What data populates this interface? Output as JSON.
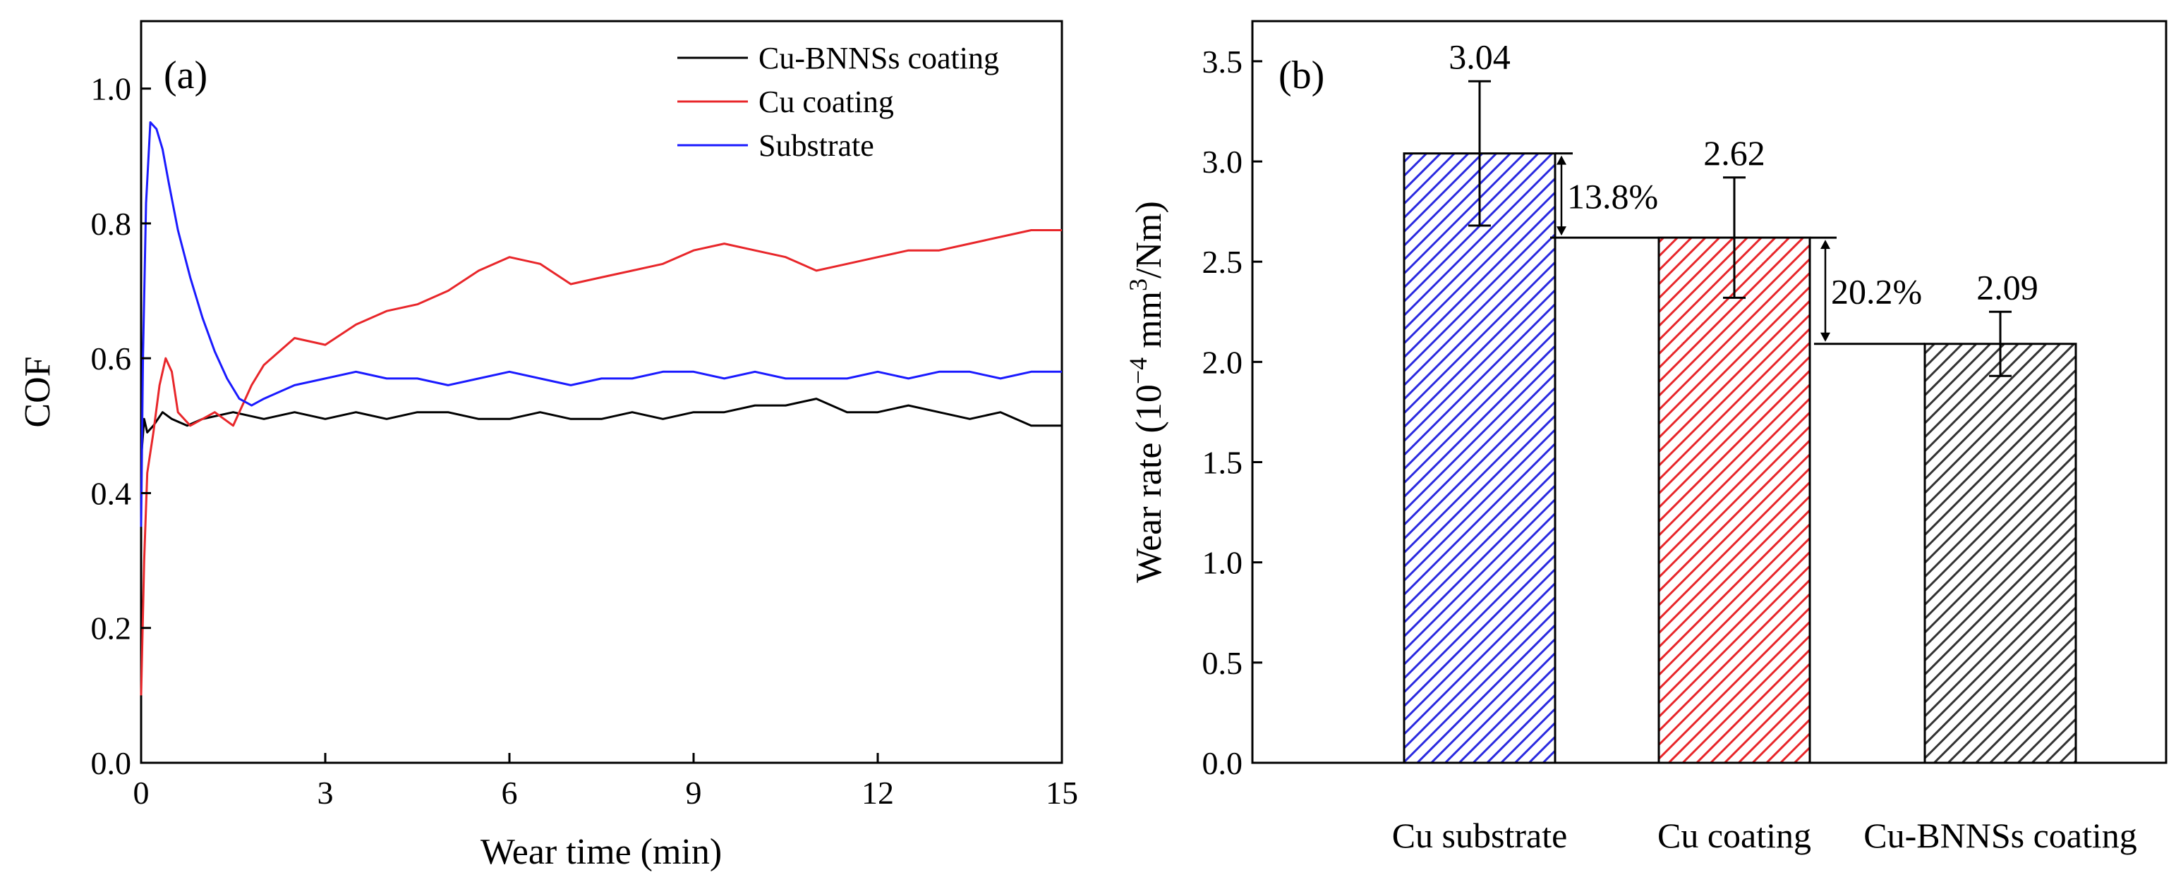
{
  "chart_data": [
    {
      "panel_label": "(a)",
      "type": "line",
      "title": "",
      "xlabel": "Wear time (min)",
      "ylabel": "COF",
      "xlim": [
        0,
        15
      ],
      "ylim": [
        0,
        1.1
      ],
      "xticks": [
        0,
        3,
        6,
        9,
        12,
        15
      ],
      "yticks": [
        0.0,
        0.2,
        0.4,
        0.6,
        0.8,
        1.0
      ],
      "xtick_labels": [
        "0",
        "3",
        "6",
        "9",
        "12",
        "15"
      ],
      "ytick_labels": [
        "0.0",
        "0.2",
        "0.4",
        "0.6",
        "0.8",
        "1.0"
      ],
      "legend_position": "top-right",
      "series": [
        {
          "name": "Cu-BNNSs coating",
          "color": "#000000",
          "x": [
            0,
            0.05,
            0.1,
            0.2,
            0.35,
            0.5,
            0.75,
            1.0,
            1.5,
            2.0,
            2.5,
            3.0,
            3.5,
            4.0,
            4.5,
            5.0,
            5.5,
            6.0,
            6.5,
            7.0,
            7.5,
            8.0,
            8.5,
            9.0,
            9.5,
            10.0,
            10.5,
            11.0,
            11.5,
            12.0,
            12.5,
            13.0,
            13.5,
            14.0,
            14.5,
            15.0
          ],
          "y": [
            0.45,
            0.51,
            0.49,
            0.5,
            0.52,
            0.51,
            0.5,
            0.51,
            0.52,
            0.51,
            0.52,
            0.51,
            0.52,
            0.51,
            0.52,
            0.52,
            0.51,
            0.51,
            0.52,
            0.51,
            0.51,
            0.52,
            0.51,
            0.52,
            0.52,
            0.53,
            0.53,
            0.54,
            0.52,
            0.52,
            0.53,
            0.52,
            0.51,
            0.52,
            0.5,
            0.5
          ]
        },
        {
          "name": "Cu coating",
          "color": "#e8262a",
          "x": [
            0,
            0.05,
            0.1,
            0.2,
            0.3,
            0.4,
            0.5,
            0.6,
            0.8,
            1.0,
            1.2,
            1.5,
            1.8,
            2.0,
            2.5,
            3.0,
            3.5,
            4.0,
            4.5,
            5.0,
            5.5,
            6.0,
            6.5,
            7.0,
            7.5,
            8.0,
            8.5,
            9.0,
            9.5,
            10.0,
            10.5,
            11.0,
            11.5,
            12.0,
            12.5,
            13.0,
            13.5,
            14.0,
            14.5,
            15.0
          ],
          "y": [
            0.1,
            0.3,
            0.43,
            0.49,
            0.56,
            0.6,
            0.58,
            0.52,
            0.5,
            0.51,
            0.52,
            0.5,
            0.56,
            0.59,
            0.63,
            0.62,
            0.65,
            0.67,
            0.68,
            0.7,
            0.73,
            0.75,
            0.74,
            0.71,
            0.72,
            0.73,
            0.74,
            0.76,
            0.77,
            0.76,
            0.75,
            0.73,
            0.74,
            0.75,
            0.76,
            0.76,
            0.77,
            0.78,
            0.79,
            0.79
          ]
        },
        {
          "name": "Substrate",
          "color": "#1a1aff",
          "x": [
            0,
            0.03,
            0.08,
            0.15,
            0.25,
            0.35,
            0.45,
            0.6,
            0.8,
            1.0,
            1.2,
            1.4,
            1.6,
            1.8,
            2.0,
            2.5,
            3.0,
            3.5,
            4.0,
            4.5,
            5.0,
            5.5,
            6.0,
            6.5,
            7.0,
            7.5,
            8.0,
            8.5,
            9.0,
            9.5,
            10.0,
            10.5,
            11.0,
            11.5,
            12.0,
            12.5,
            13.0,
            13.5,
            14.0,
            14.5,
            15.0
          ],
          "y": [
            0.35,
            0.6,
            0.83,
            0.95,
            0.94,
            0.91,
            0.86,
            0.79,
            0.72,
            0.66,
            0.61,
            0.57,
            0.54,
            0.53,
            0.54,
            0.56,
            0.57,
            0.58,
            0.57,
            0.57,
            0.56,
            0.57,
            0.58,
            0.57,
            0.56,
            0.57,
            0.57,
            0.58,
            0.58,
            0.57,
            0.58,
            0.57,
            0.57,
            0.57,
            0.58,
            0.57,
            0.58,
            0.58,
            0.57,
            0.58,
            0.58
          ]
        }
      ]
    },
    {
      "panel_label": "(b)",
      "type": "bar",
      "title": "",
      "xlabel": "",
      "ylabel_parts": {
        "main": "Wear rate (10",
        "exp1": "−4",
        "mid": " mm",
        "exp2": "3",
        "end": "/Nm)"
      },
      "ylim": [
        0,
        3.7
      ],
      "yticks": [
        0.0,
        0.5,
        1.0,
        1.5,
        2.0,
        2.5,
        3.0,
        3.5
      ],
      "ytick_labels": [
        "0.0",
        "0.5",
        "1.0",
        "1.5",
        "2.0",
        "2.5",
        "3.0",
        "3.5"
      ],
      "categories": [
        "Cu substrate",
        "Cu coating",
        "Cu-BNNSs coating"
      ],
      "values": [
        3.04,
        2.62,
        2.09
      ],
      "value_labels": [
        "3.04",
        "2.62",
        "2.09"
      ],
      "error_bars": [
        0.36,
        0.3,
        0.16
      ],
      "colors": [
        "#2a2ae0",
        "#e8262a",
        "#333333"
      ],
      "annotations": [
        {
          "text": "13.8%",
          "from_value": 3.04,
          "to_value": 2.62
        },
        {
          "text": "20.2%",
          "from_value": 2.62,
          "to_value": 2.09
        }
      ]
    }
  ]
}
